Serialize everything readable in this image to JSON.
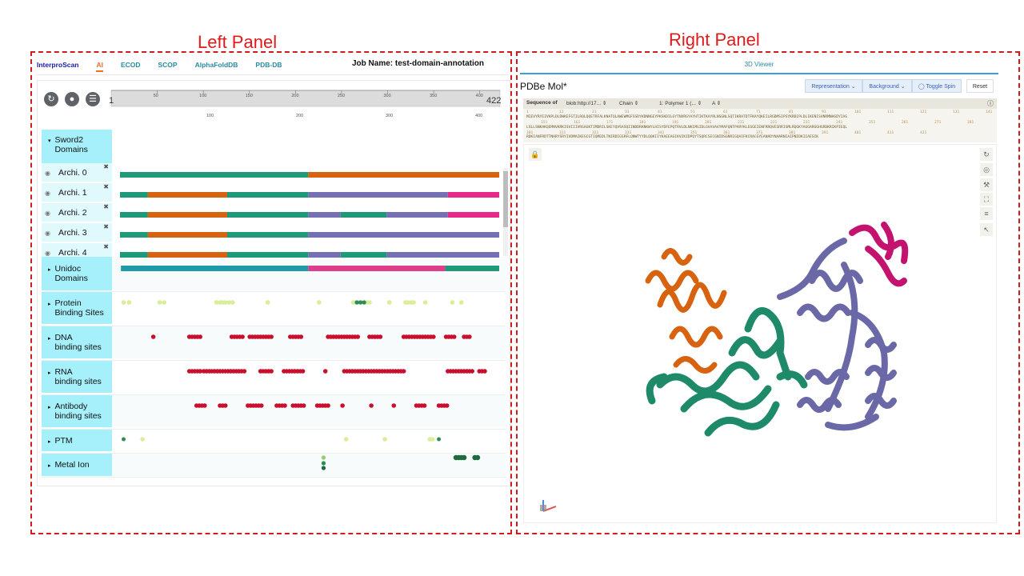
{
  "panels": {
    "left_title": "Left Panel",
    "right_title": "Right Panel"
  },
  "left": {
    "tabs": [
      "InterproScan",
      "AI",
      "ECOD",
      "SCOP",
      "AlphaFoldDB",
      "PDB-DB"
    ],
    "active_tab": "AI",
    "job_name": "Job Name: test-domain-annotation",
    "ruler": {
      "start": "1",
      "end": "422",
      "ticks": [
        "50",
        "100",
        "150",
        "200",
        "250",
        "300",
        "350",
        "400"
      ],
      "lower_ticks": [
        "100",
        "200",
        "300",
        "400"
      ]
    },
    "tracks": {
      "sword2": "Sword2\nDomains",
      "archi": [
        "Archi. 0",
        "Archi. 1",
        "Archi. 2",
        "Archi. 3",
        "Archi. 4"
      ],
      "unidoc": "Unidoc\nDomains",
      "protein": "Protein\nBinding Sites",
      "dna": "DNA\nbinding sites",
      "rna": "RNA\nbinding sites",
      "antibody": "Antibody\nbinding sites",
      "ptm": "PTM",
      "metal": "Metal Ion"
    },
    "colors": {
      "green": "#1e9a78",
      "orange": "#d7620f",
      "purple": "#7570b3",
      "pink": "#e7298a",
      "teal": "#1e9aa8",
      "magenta": "#dd3d8a",
      "red": "#c8102e"
    }
  },
  "right": {
    "viewer_tab": "3D Viewer",
    "app_title": "PDBe Mol*",
    "buttons": {
      "representation": "Representation",
      "background": "Background",
      "spin": "Toggle Spin",
      "reset": "Reset"
    },
    "sequence_bar": {
      "label": "Sequence of",
      "source": "blob:http://17...",
      "mode": "Chain",
      "polymer": "1: Polymer 1 (...",
      "chain": "A"
    },
    "sequence_lines": [
      "MIEVYRYEIVKPLDLDWKEFGTILRQLQQETRFALKNATQLAWEWMGFSSDYKDNNGEYPKSKDILGYTNVRGYAYHTIKTKAYRLNSGNLSQTIKRATDTFKAYQKEILRGDMSIPSYKRDIPLDLIKENISVNRMNHGDYIAS",
      "LSLLSNKAKQEMNVKRKISVIIIVRGAGKTIMDRILSKEYQVSASQIINDDRKNKWYLHISYDFEPQTRVLDLNKIMGIDLGVAVAVYMAFQNTPARYKLEGGEIENFRRQVESRRISMLRQGKYAGGARGGHGRDKRIKPIEQL",
      "RDKIANFRDTTNHRYSRYIVDMAIKEGCGTIQMEDLTNIRDIGSRFLQNWTYYDLQQKIIYKAEEAGIKVIKIDPQYTSQRCSECGNIDSGNRIGQAIFKCRACGYEANADYNAARNIAIPNIDKIIAESIK"
    ],
    "sequence_numbers": [
      [
        "1",
        "11",
        "21",
        "31",
        "41",
        "51",
        "61",
        "71",
        "81",
        "91",
        "101",
        "111",
        "121",
        "131",
        "141"
      ],
      [
        "151",
        "161",
        "171",
        "181",
        "191",
        "201",
        "211",
        "221",
        "231",
        "241",
        "251",
        "261",
        "271",
        "281",
        "291"
      ],
      [
        "301",
        "311",
        "321",
        "331",
        "341",
        "351",
        "361",
        "371",
        "381",
        "391",
        "401",
        "411",
        "421"
      ]
    ]
  }
}
